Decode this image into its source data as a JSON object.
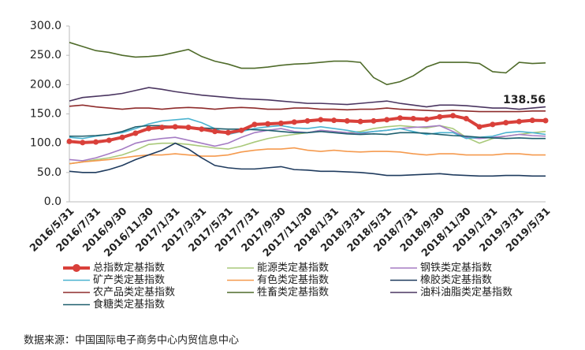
{
  "chart_data": {
    "type": "line",
    "categories": [
      "2016/5/31",
      null,
      "2016/7/31",
      null,
      "2016/9/30",
      null,
      "2016/11/30",
      null,
      "2017/1/31",
      null,
      "2017/3/31",
      null,
      "2017/5/31",
      null,
      "2017/7/31",
      null,
      "2017/9/30",
      null,
      "2017/11/30",
      null,
      "2018/1/31",
      null,
      "2018/3/31",
      null,
      "2018/5/31",
      null,
      "2018/7/31",
      null,
      "2018/9/30",
      null,
      "2018/11/30",
      null,
      "2019/1/31",
      null,
      "2019/3/31",
      null,
      "2019/5/31"
    ],
    "ylim": [
      0,
      300
    ],
    "yticks": [
      {
        "value": 0,
        "label": "0.0"
      },
      {
        "value": 50,
        "label": "50.0"
      },
      {
        "value": 100,
        "label": "100.0"
      },
      {
        "value": 150,
        "label": "150.0"
      },
      {
        "value": 200,
        "label": "200.0"
      },
      {
        "value": 250,
        "label": "250.0"
      },
      {
        "value": 300,
        "label": "300.0"
      }
    ],
    "grid": false,
    "series": [
      {
        "name": "总指数定基指数",
        "color": "#d9403a",
        "markers": true,
        "values": [
          103,
          101,
          102,
          105,
          110,
          117,
          125,
          127,
          128,
          127,
          124,
          120,
          118,
          122,
          132,
          133,
          134,
          136,
          138,
          140,
          139,
          138,
          137,
          138,
          140,
          143,
          142,
          141,
          145,
          147,
          142,
          128,
          132,
          135,
          137,
          139,
          138.56
        ]
      },
      {
        "name": "能源类定基指数",
        "color": "#a9c97a",
        "values": [
          65,
          68,
          72,
          75,
          80,
          88,
          98,
          100,
          100,
          98,
          95,
          92,
          90,
          95,
          102,
          108,
          112,
          115,
          118,
          122,
          120,
          118,
          120,
          125,
          128,
          130,
          128,
          126,
          130,
          125,
          110,
          100,
          108,
          112,
          115,
          118,
          120
        ]
      },
      {
        "name": "钢铁类定基指数",
        "color": "#a57cc4",
        "values": [
          72,
          70,
          75,
          82,
          90,
          100,
          105,
          108,
          110,
          105,
          100,
          95,
          100,
          110,
          118,
          122,
          125,
          120,
          118,
          122,
          120,
          118,
          116,
          120,
          122,
          125,
          127,
          128,
          130,
          120,
          110,
          108,
          110,
          112,
          115,
          113,
          112
        ]
      },
      {
        "name": "矿产类定基指数",
        "color": "#4bb3d0",
        "values": [
          110,
          108,
          112,
          115,
          118,
          125,
          133,
          138,
          140,
          142,
          135,
          125,
          115,
          120,
          125,
          128,
          130,
          126,
          125,
          128,
          125,
          122,
          118,
          120,
          122,
          125,
          120,
          115,
          118,
          118,
          108,
          110,
          112,
          118,
          120,
          118,
          115
        ]
      },
      {
        "name": "有色类定基指数",
        "color": "#f59a4e",
        "values": [
          65,
          68,
          70,
          72,
          75,
          78,
          80,
          80,
          82,
          80,
          78,
          78,
          80,
          85,
          88,
          90,
          90,
          92,
          88,
          86,
          88,
          86,
          85,
          86,
          86,
          85,
          82,
          80,
          82,
          82,
          80,
          80,
          80,
          82,
          82,
          80,
          80
        ]
      },
      {
        "name": "橡胶类定基指数",
        "color": "#1f3b5e",
        "values": [
          52,
          50,
          50,
          55,
          62,
          72,
          80,
          88,
          100,
          90,
          75,
          62,
          58,
          56,
          56,
          58,
          60,
          55,
          54,
          52,
          52,
          51,
          50,
          48,
          45,
          45,
          46,
          47,
          48,
          46,
          45,
          44,
          44,
          45,
          45,
          44,
          44
        ]
      },
      {
        "name": "农产品类定基指数",
        "color": "#8e2b2b",
        "values": [
          163,
          165,
          162,
          160,
          158,
          160,
          160,
          158,
          160,
          161,
          160,
          158,
          160,
          161,
          160,
          158,
          158,
          160,
          160,
          158,
          158,
          157,
          158,
          158,
          160,
          158,
          157,
          156,
          155,
          156,
          155,
          154,
          154,
          154,
          154,
          155,
          155
        ]
      },
      {
        "name": "牲畜类定基指数",
        "color": "#4f6b2a",
        "values": [
          272,
          265,
          258,
          255,
          250,
          247,
          248,
          250,
          255,
          260,
          248,
          240,
          235,
          228,
          228,
          230,
          233,
          235,
          236,
          238,
          240,
          240,
          238,
          212,
          200,
          205,
          215,
          230,
          238,
          238,
          238,
          236,
          222,
          220,
          238,
          236,
          237
        ]
      },
      {
        "name": "油料油脂类定基指数",
        "color": "#4a3560",
        "values": [
          172,
          178,
          180,
          182,
          185,
          190,
          195,
          192,
          188,
          185,
          182,
          180,
          178,
          176,
          175,
          174,
          172,
          170,
          168,
          168,
          167,
          166,
          168,
          170,
          172,
          168,
          165,
          162,
          165,
          165,
          164,
          162,
          160,
          160,
          158,
          160,
          162
        ]
      },
      {
        "name": "食糖类定基指数",
        "color": "#1e5f6e",
        "values": [
          112,
          112,
          113,
          115,
          120,
          128,
          130,
          130,
          128,
          127,
          126,
          125,
          124,
          124,
          123,
          122,
          120,
          118,
          118,
          120,
          118,
          116,
          115,
          116,
          115,
          118,
          118,
          117,
          115,
          113,
          112,
          110,
          109,
          108,
          109,
          108,
          108
        ]
      }
    ],
    "source": "数据来源：中国国际电子商务中心内贸信息中心"
  }
}
